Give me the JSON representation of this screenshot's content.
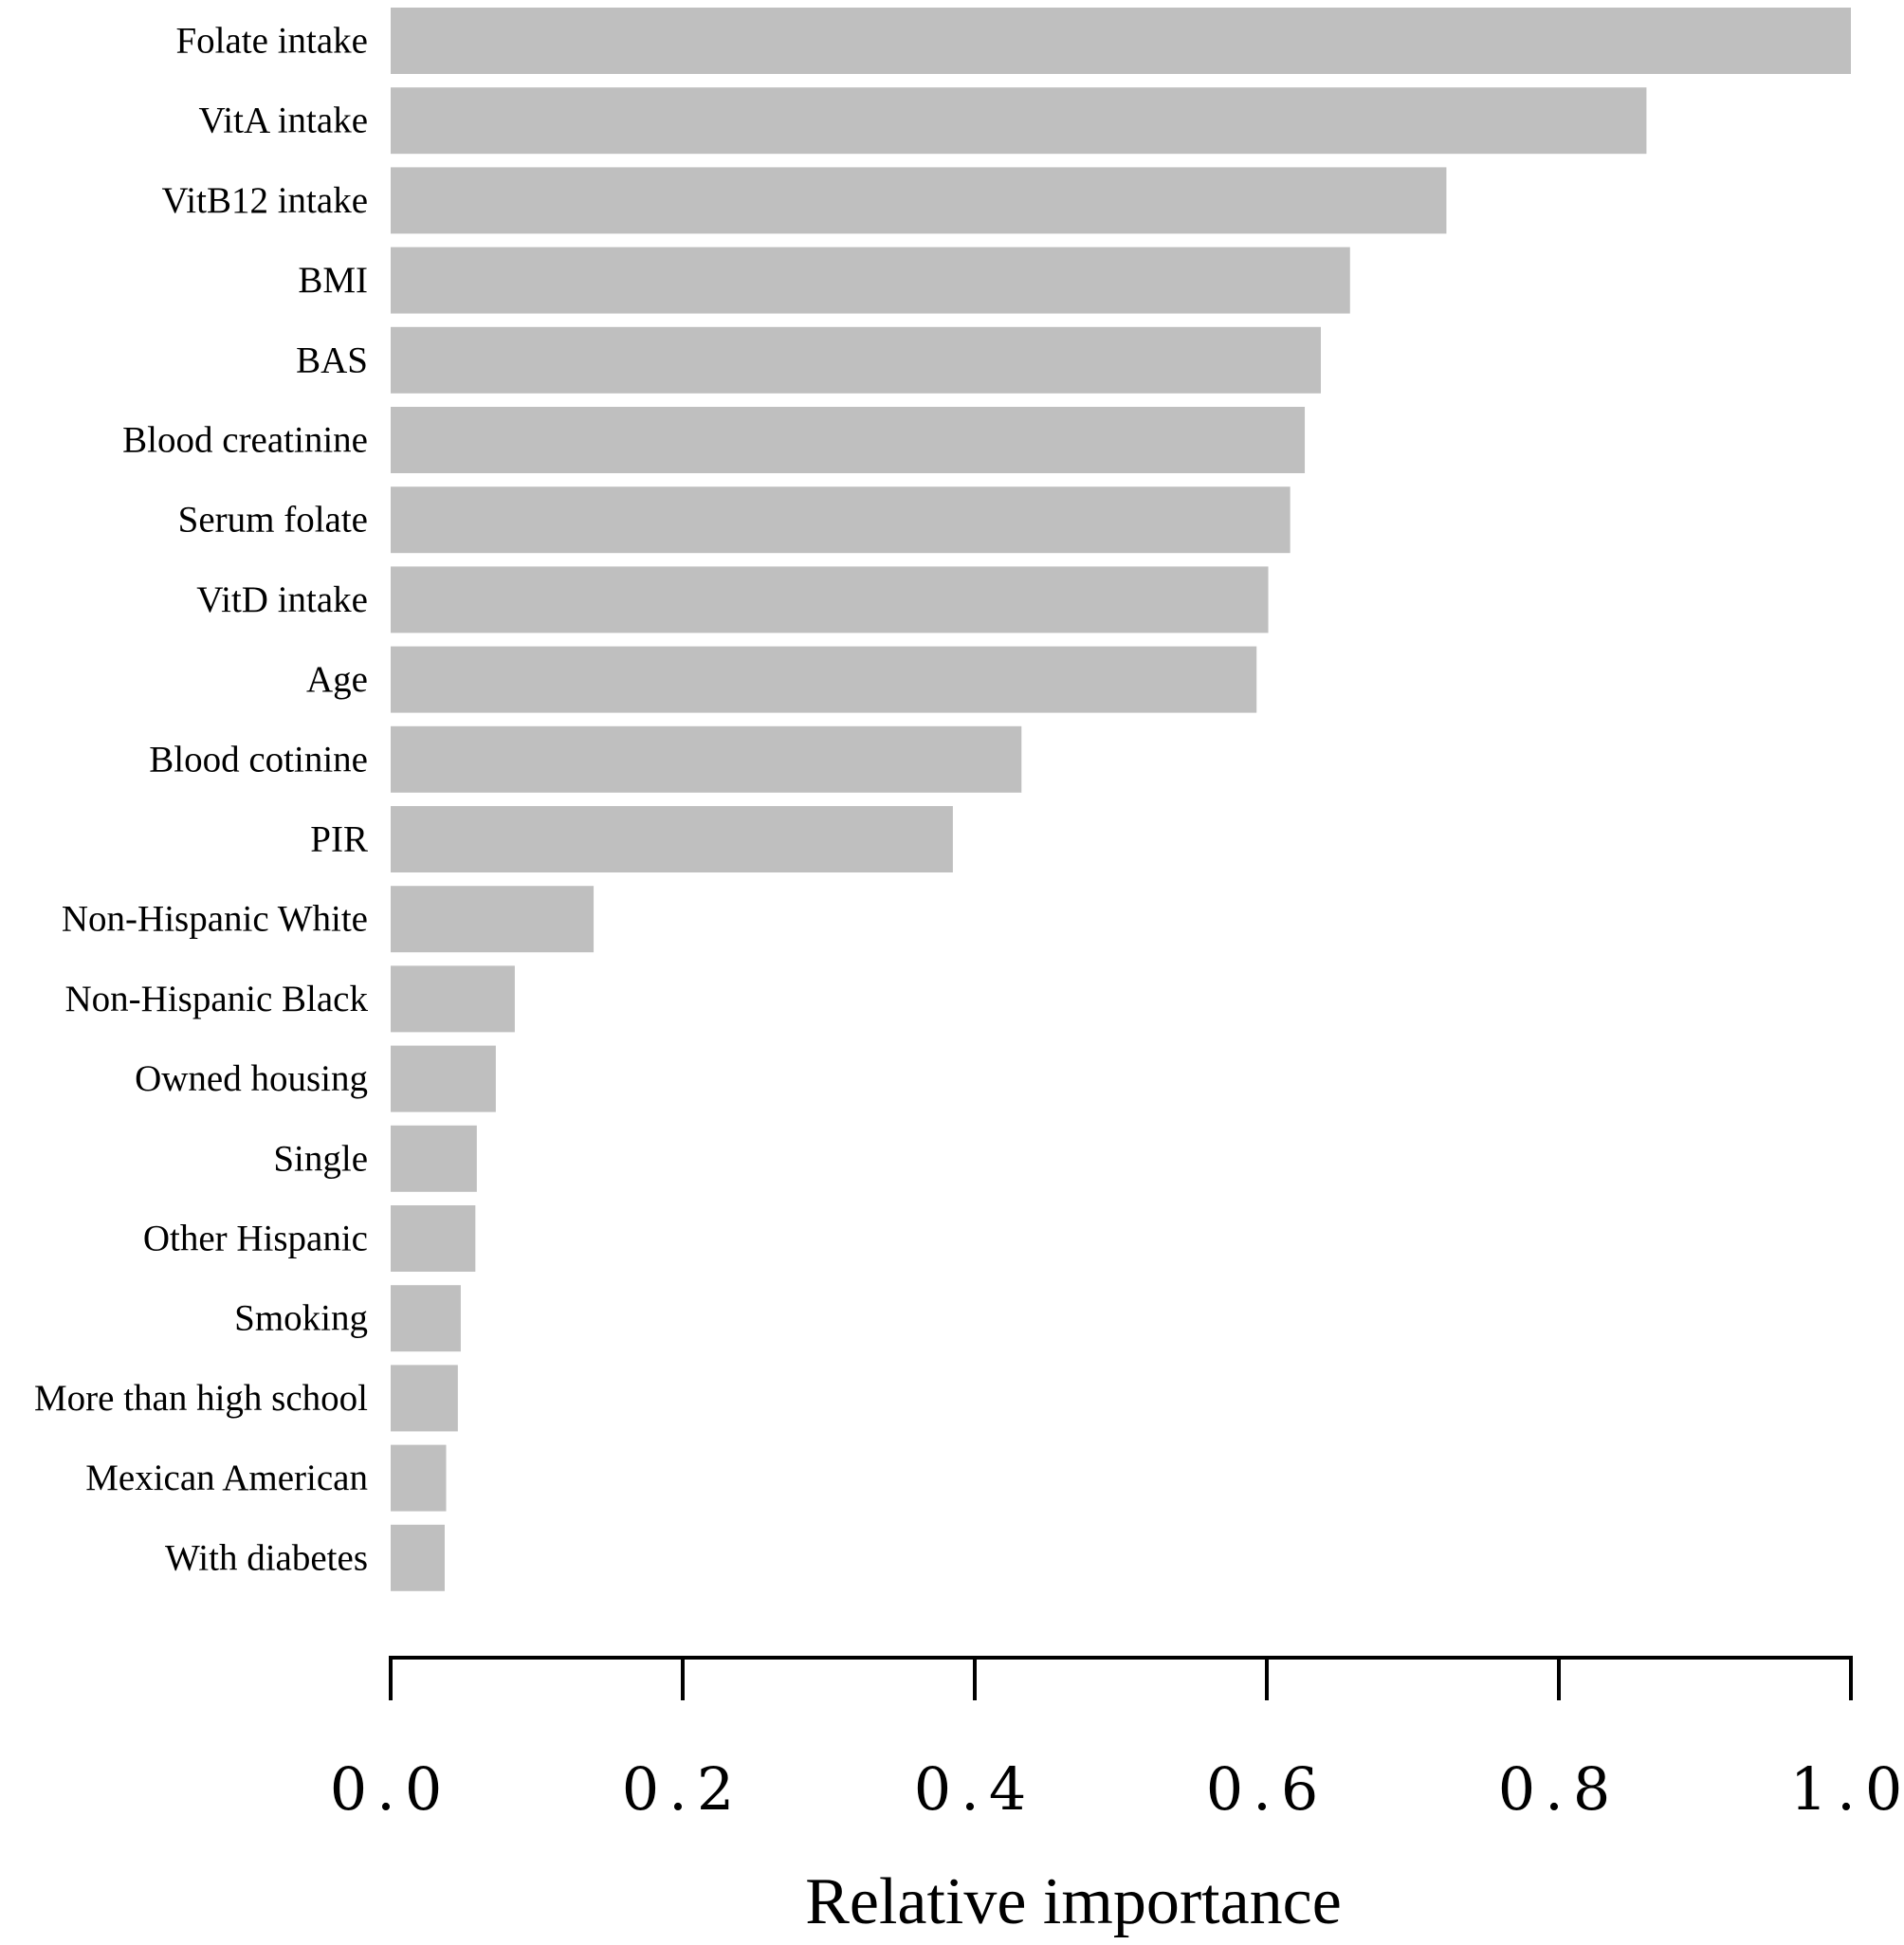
{
  "chart_data": {
    "type": "bar",
    "orientation": "horizontal",
    "categories": [
      "Folate intake",
      "VitA intake",
      "VitB12 intake",
      "BMI",
      "BAS",
      "Blood creatinine",
      "Serum folate",
      "VitD intake",
      "Age",
      "Blood cotinine",
      "PIR",
      "Non-Hispanic White",
      "Non-Hispanic Black",
      "Owned housing",
      "Single",
      "Other Hispanic",
      "Smoking",
      "More than high school",
      "Mexican American",
      "With diabetes"
    ],
    "values": [
      1.0,
      0.86,
      0.723,
      0.657,
      0.637,
      0.626,
      0.616,
      0.601,
      0.593,
      0.432,
      0.385,
      0.139,
      0.085,
      0.072,
      0.059,
      0.058,
      0.048,
      0.046,
      0.038,
      0.037
    ],
    "xlabel": "Relative importance",
    "ylabel": "",
    "xlim": [
      0,
      1.0
    ],
    "xticks": [
      0.0,
      0.2,
      0.4,
      0.6,
      0.8,
      1.0
    ],
    "xtick_labels": [
      "0.0",
      "0.2",
      "0.4",
      "0.6",
      "0.8",
      "1.0"
    ],
    "grid": false,
    "colors": {
      "bar": "#bfbfbf",
      "axis": "#000000"
    }
  }
}
